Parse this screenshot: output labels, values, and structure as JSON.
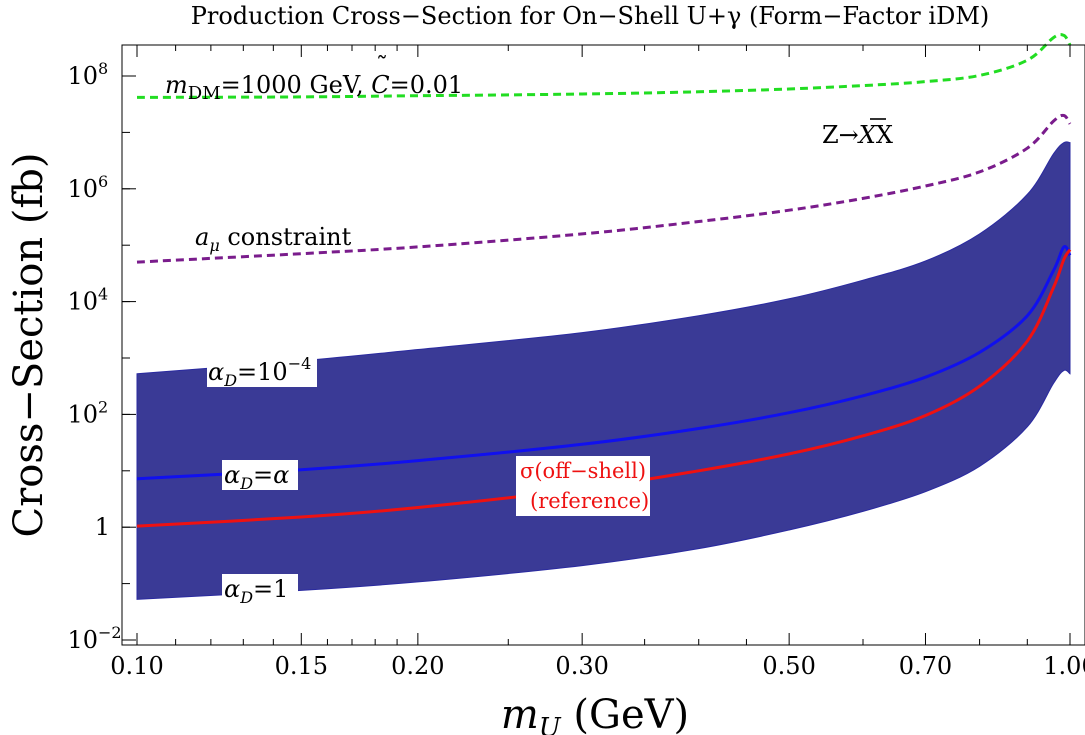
{
  "chart_data": {
    "type": "line",
    "title": "Production Cross−Section for On−Shell U+γ (Form−Factor iDM)",
    "xlabel": {
      "var": "m",
      "sub": "U",
      "unit": " (GeV)"
    },
    "ylabel": "Cross−Section (fb)",
    "xscale": "log",
    "yscale": "log",
    "xlim": [
      0.1,
      1.0
    ],
    "ylim_log10": [
      -2,
      9
    ],
    "x_ticks": [
      {
        "value": 0.1,
        "label": "0.10"
      },
      {
        "value": 0.15,
        "label": "0.15"
      },
      {
        "value": 0.2,
        "label": "0.20"
      },
      {
        "value": 0.3,
        "label": "0.30"
      },
      {
        "value": 0.5,
        "label": "0.50"
      },
      {
        "value": 0.7,
        "label": "0.70"
      },
      {
        "value": 1.0,
        "label": "1.00"
      }
    ],
    "x_minor_ticks": [
      0.11,
      0.12,
      0.13,
      0.14,
      0.16,
      0.17,
      0.18,
      0.19,
      0.25,
      0.35,
      0.4,
      0.45,
      0.6,
      0.8,
      0.9
    ],
    "y_ticks": [
      {
        "exp": -2,
        "label": "10",
        "sup": "−2"
      },
      {
        "exp": 0,
        "label": "1",
        "sup": ""
      },
      {
        "exp": 2,
        "label": "10",
        "sup": "2"
      },
      {
        "exp": 4,
        "label": "10",
        "sup": "4"
      },
      {
        "exp": 6,
        "label": "10",
        "sup": "6"
      },
      {
        "exp": 8,
        "label": "10",
        "sup": "8"
      }
    ],
    "series": [
      {
        "name": "Z→X̅X constraint",
        "style": "dashed",
        "color": "#22dd22",
        "x": [
          0.1,
          0.15,
          0.2,
          0.3,
          0.4,
          0.5,
          0.6,
          0.7,
          0.8,
          0.9,
          0.96,
          0.985,
          1.0
        ],
        "log10_y": [
          7.62,
          7.63,
          7.65,
          7.68,
          7.72,
          7.77,
          7.83,
          7.9,
          8.01,
          8.28,
          8.68,
          8.72,
          8.55
        ]
      },
      {
        "name": "a_mu constraint",
        "style": "dashed",
        "color": "#7a1c8c",
        "x": [
          0.1,
          0.15,
          0.2,
          0.3,
          0.4,
          0.5,
          0.6,
          0.7,
          0.8,
          0.9,
          0.96,
          0.985,
          1.0
        ],
        "log10_y": [
          4.7,
          4.85,
          4.97,
          5.2,
          5.42,
          5.62,
          5.83,
          6.05,
          6.3,
          6.72,
          7.2,
          7.3,
          7.15
        ]
      },
      {
        "name": "alpha_D = alpha",
        "style": "solid",
        "color": "#1010ee",
        "x": [
          0.1,
          0.15,
          0.2,
          0.3,
          0.4,
          0.5,
          0.6,
          0.7,
          0.8,
          0.9,
          0.96,
          0.985,
          1.0
        ],
        "log10_y": [
          0.86,
          1.02,
          1.18,
          1.47,
          1.75,
          2.03,
          2.33,
          2.66,
          3.1,
          3.75,
          4.55,
          4.97,
          4.82
        ]
      },
      {
        "name": "sigma (off-shell) reference",
        "style": "solid",
        "color": "#ee1111",
        "x": [
          0.1,
          0.15,
          0.2,
          0.3,
          0.4,
          0.5,
          0.6,
          0.7,
          0.8,
          0.9,
          0.96,
          0.985,
          1.0
        ],
        "log10_y": [
          0.02,
          0.18,
          0.35,
          0.68,
          1.0,
          1.3,
          1.62,
          1.98,
          2.5,
          3.3,
          4.25,
          4.75,
          4.92
        ]
      }
    ],
    "band": {
      "name": "alpha_D range 1 to 1e-4",
      "color": "#3a3a96",
      "x": [
        0.1,
        0.15,
        0.2,
        0.3,
        0.4,
        0.5,
        0.6,
        0.7,
        0.8,
        0.9,
        0.96,
        0.985,
        1.0
      ],
      "log10_upper": [
        2.72,
        2.95,
        3.15,
        3.45,
        3.75,
        4.05,
        4.38,
        4.72,
        5.2,
        5.9,
        6.62,
        6.82,
        6.82
      ],
      "log10_lower": [
        -1.28,
        -1.12,
        -0.97,
        -0.68,
        -0.38,
        -0.05,
        0.28,
        0.63,
        1.08,
        1.78,
        2.55,
        2.78,
        2.72
      ]
    },
    "annotations": {
      "mass_label": {
        "m": "m",
        "sub": "DM",
        "rest": "=1000 GeV, ",
        "c": "C",
        "tilde": "˜",
        "cval": "=0.01"
      },
      "z_label": {
        "z": "Z→",
        "xbar": "X",
        "rest": "X"
      },
      "amu_label": {
        "a": "a",
        "sub": "μ",
        "rest": " constraint"
      },
      "alphaD_min": {
        "a": "α",
        "sub": "D",
        "eq": "=10",
        "sup": "−4"
      },
      "alphaD_alpha": {
        "a": "α",
        "sub": "D",
        "eq": "=α"
      },
      "alphaD_one": {
        "a": "α",
        "sub": "D",
        "eq": "=1"
      },
      "offshell": {
        "line1": "σ(off−shell)",
        "line2": "(reference)"
      }
    }
  }
}
